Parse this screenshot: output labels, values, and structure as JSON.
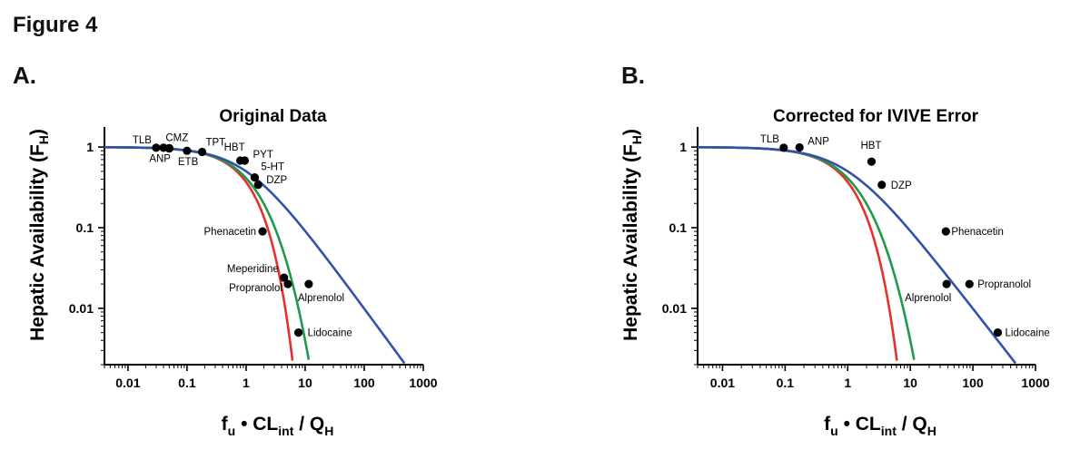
{
  "figure_title": "Figure 4",
  "panels": [
    "A.",
    "B."
  ],
  "chart_data": [
    {
      "type": "line",
      "title": "Original Data",
      "ylabel_main": "Hepatic Availability (F",
      "ylabel_sub": "H",
      "ylabel_close": ")",
      "xlabel_parts": [
        "f",
        "u",
        " • CL",
        "int",
        " / Q",
        "H"
      ],
      "xscale": "log",
      "yscale": "log",
      "xlim": [
        0.004,
        1000
      ],
      "ylim": [
        0.002,
        1.3
      ],
      "xticks": [
        0.01,
        0.1,
        1,
        10,
        100,
        1000
      ],
      "xticklabels": [
        "0.01",
        "0.1",
        "1",
        "10",
        "100",
        "1000"
      ],
      "yticks": [
        1,
        0.1,
        0.01
      ],
      "yticklabels": [
        "1",
        "0.1",
        "0.01"
      ],
      "grid": false,
      "series": [
        {
          "color": "#e8302a",
          "model": "red",
          "xmin": 0.004,
          "xmax": 6.1
        },
        {
          "color": "#1f9a4a",
          "model": "green",
          "xmin": 0.004,
          "xmax": 11.5
        },
        {
          "color": "#3351a8",
          "model": "blue",
          "xmin": 0.004,
          "xmax": 480
        }
      ],
      "points": [
        {
          "label": "TLB",
          "x": 0.03,
          "y": 0.98
        },
        {
          "label": "",
          "x": 0.04,
          "y": 0.98
        },
        {
          "label": "CMZ",
          "x": 0.05,
          "y": 0.97
        },
        {
          "label": "ANP",
          "x": 0.05,
          "y": 0.96
        },
        {
          "label": "ETB",
          "x": 0.1,
          "y": 0.9
        },
        {
          "label": "TPT",
          "x": 0.18,
          "y": 0.87
        },
        {
          "label": "HBT",
          "x": 0.8,
          "y": 0.68
        },
        {
          "label": "PYT",
          "x": 0.95,
          "y": 0.68
        },
        {
          "label": "5-HT",
          "x": 1.4,
          "y": 0.42
        },
        {
          "label": "DZP",
          "x": 1.6,
          "y": 0.34
        },
        {
          "label": "Phenacetin",
          "x": 1.9,
          "y": 0.09
        },
        {
          "label": "Meperidine",
          "x": 4.4,
          "y": 0.024
        },
        {
          "label": "Propranolol",
          "x": 5.1,
          "y": 0.02
        },
        {
          "label": "Alprenolol",
          "x": 11.5,
          "y": 0.02
        },
        {
          "label": "Lidocaine",
          "x": 7.7,
          "y": 0.005
        }
      ]
    },
    {
      "type": "line",
      "title": "Corrected for IVIVE Error",
      "ylabel_main": "Hepatic Availability (F",
      "ylabel_sub": "H",
      "ylabel_close": ")",
      "xlabel_parts": [
        "f",
        "u",
        " • CL",
        "int",
        " / Q",
        "H"
      ],
      "xscale": "log",
      "yscale": "log",
      "xlim": [
        0.004,
        1000
      ],
      "ylim": [
        0.002,
        1.3
      ],
      "xticks": [
        0.01,
        0.1,
        1,
        10,
        100,
        1000
      ],
      "xticklabels": [
        "0.01",
        "0.1",
        "1",
        "10",
        "100",
        "1000"
      ],
      "yticks": [
        1,
        0.1,
        0.01
      ],
      "yticklabels": [
        "1",
        "0.1",
        "0.01"
      ],
      "grid": false,
      "series": [
        {
          "color": "#e8302a",
          "model": "red",
          "xmin": 0.004,
          "xmax": 6.1
        },
        {
          "color": "#1f9a4a",
          "model": "green",
          "xmin": 0.004,
          "xmax": 11.5
        },
        {
          "color": "#3351a8",
          "model": "blue",
          "xmin": 0.004,
          "xmax": 480
        }
      ],
      "points": [
        {
          "label": "TLB",
          "x": 0.095,
          "y": 0.98
        },
        {
          "label": "ANP",
          "x": 0.17,
          "y": 0.99
        },
        {
          "label": "HBT",
          "x": 2.4,
          "y": 0.66
        },
        {
          "label": "DZP",
          "x": 3.5,
          "y": 0.34
        },
        {
          "label": "Phenacetin",
          "x": 37,
          "y": 0.09
        },
        {
          "label": "Propranolol",
          "x": 88,
          "y": 0.02
        },
        {
          "label": "Alprenolol",
          "x": 38,
          "y": 0.02
        },
        {
          "label": "Lidocaine",
          "x": 250,
          "y": 0.005
        }
      ]
    }
  ]
}
